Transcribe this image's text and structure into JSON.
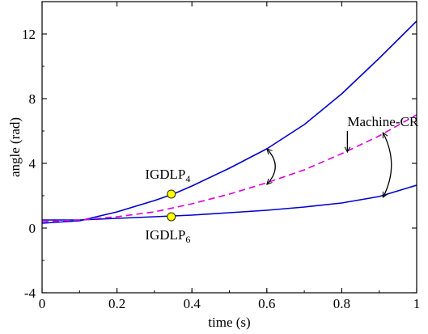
{
  "chart_data": {
    "type": "line",
    "title": "",
    "xlabel": "time (s)",
    "ylabel": "angle (rad)",
    "xlim": [
      0,
      1
    ],
    "ylim": [
      -4,
      14
    ],
    "x_ticks": [
      0,
      0.2,
      0.4,
      0.6,
      0.8,
      1
    ],
    "x_tick_labels": [
      "0",
      "0.2",
      "0.4",
      "0.6",
      "0.8",
      "1"
    ],
    "y_ticks": [
      -4,
      0,
      4,
      8,
      12
    ],
    "y_tick_labels": [
      "-4",
      "0",
      "4",
      "8",
      "12"
    ],
    "grid": false,
    "legend": "none",
    "series": [
      {
        "color": "#0000cc",
        "style": "solid",
        "x": [
          0,
          0.1,
          0.2,
          0.3,
          0.35,
          0.4,
          0.5,
          0.6,
          0.7,
          0.8,
          0.9,
          1.0
        ],
        "y": [
          0.3,
          0.45,
          1.0,
          1.7,
          2.1,
          2.6,
          3.7,
          4.9,
          6.4,
          8.3,
          10.5,
          12.8
        ]
      },
      {
        "color": "#0000cc",
        "style": "solid",
        "x": [
          0,
          0.1,
          0.2,
          0.3,
          0.35,
          0.4,
          0.5,
          0.6,
          0.7,
          0.8,
          0.9,
          1.0
        ],
        "y": [
          0.5,
          0.5,
          0.6,
          0.7,
          0.75,
          0.8,
          0.95,
          1.1,
          1.3,
          1.55,
          1.95,
          2.65
        ]
      },
      {
        "color": "#dd00dd",
        "style": "dashed",
        "x": [
          0,
          0.1,
          0.2,
          0.3,
          0.4,
          0.5,
          0.6,
          0.7,
          0.8,
          0.9,
          1.0
        ],
        "y": [
          0.4,
          0.5,
          0.7,
          1.0,
          1.5,
          2.1,
          2.8,
          3.6,
          4.6,
          5.7,
          7.0
        ]
      }
    ],
    "markers": [
      {
        "x": 0.345,
        "y": 2.1,
        "color": "#ffff00",
        "stroke": "#333300"
      },
      {
        "x": 0.345,
        "y": 0.7,
        "color": "#ffff00",
        "stroke": "#333300"
      }
    ],
    "annotations": [
      {
        "base": "IGDLP",
        "sub": "4",
        "x": 0.275,
        "y": 3.05
      },
      {
        "base": "IGDLP",
        "sub": "6",
        "x": 0.275,
        "y": -0.7
      },
      {
        "base": "Machine-CR",
        "sub": "",
        "x": 0.815,
        "y": 6.3
      }
    ],
    "pointer_arrow": {
      "from": [
        0.815,
        6.0
      ],
      "to": [
        0.815,
        4.7
      ]
    },
    "curved_arrows": [
      {
        "from": [
          0.6,
          4.9
        ],
        "to": [
          0.6,
          2.7
        ],
        "bulge": 0.045
      },
      {
        "from": [
          0.91,
          5.9
        ],
        "to": [
          0.91,
          1.9
        ],
        "bulge": 0.045
      }
    ]
  }
}
